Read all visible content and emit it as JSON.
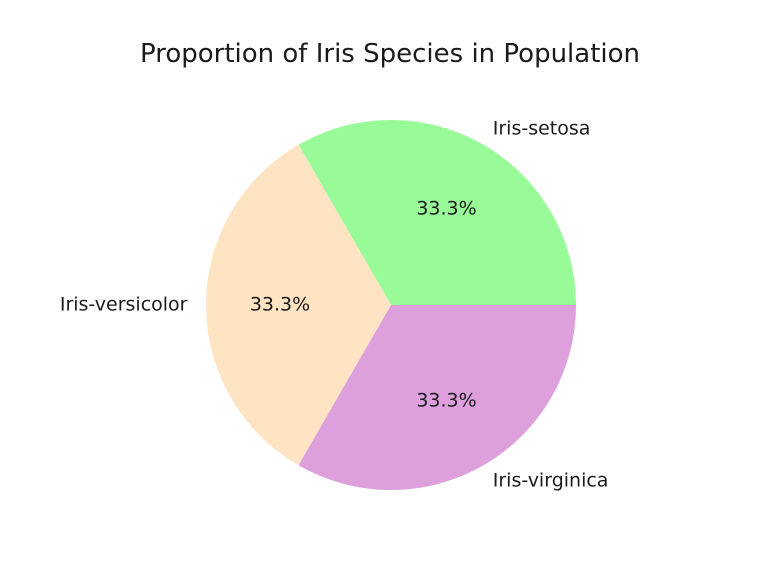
{
  "chart_data": {
    "type": "pie",
    "title": "Proportion of Iris Species in Population",
    "labels": [
      "Iris-setosa",
      "Iris-versicolor",
      "Iris-virginica"
    ],
    "values": [
      33.3,
      33.3,
      33.3
    ],
    "percent_labels": [
      "33.3%",
      "33.3%",
      "33.3%"
    ],
    "colors": [
      "#98fb98",
      "#ffe4c4",
      "#dda0dd"
    ],
    "start_angle_deg": 0,
    "direction": "counterclockwise"
  }
}
